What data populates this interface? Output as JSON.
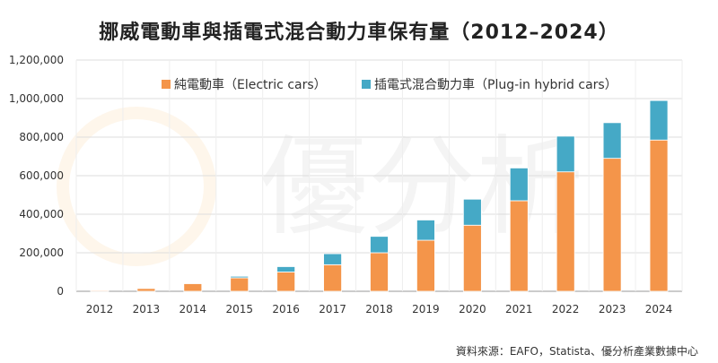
{
  "chart_data": {
    "type": "bar",
    "stacked": true,
    "title": "挪威電動車與插電式混合動力車保有量（2012–2024）",
    "categories": [
      "2012",
      "2013",
      "2014",
      "2015",
      "2016",
      "2017",
      "2018",
      "2019",
      "2020",
      "2021",
      "2022",
      "2023",
      "2024"
    ],
    "series": [
      {
        "name": "純電動車（Electric cars）",
        "color": "#F4954A",
        "values": [
          5000,
          15000,
          40000,
          70000,
          100000,
          138000,
          200000,
          265000,
          343000,
          470000,
          620000,
          690000,
          785000
        ]
      },
      {
        "name": "插電式混合動力車（Plug-in hybrid cars）",
        "color": "#45A9C6",
        "values": [
          500,
          2000,
          3000,
          8000,
          28000,
          57000,
          85000,
          105000,
          135000,
          170000,
          185000,
          185000,
          205000
        ]
      }
    ],
    "yticks": [
      "0",
      "200,000",
      "400,000",
      "600,000",
      "800,000",
      "1,000,000",
      "1,200,000"
    ],
    "ylim": [
      0,
      1200000
    ],
    "grid": true,
    "legend": "top"
  },
  "source": "資料來源：EAFO，Statista、優分析產業數據中心",
  "watermark": "優分析"
}
